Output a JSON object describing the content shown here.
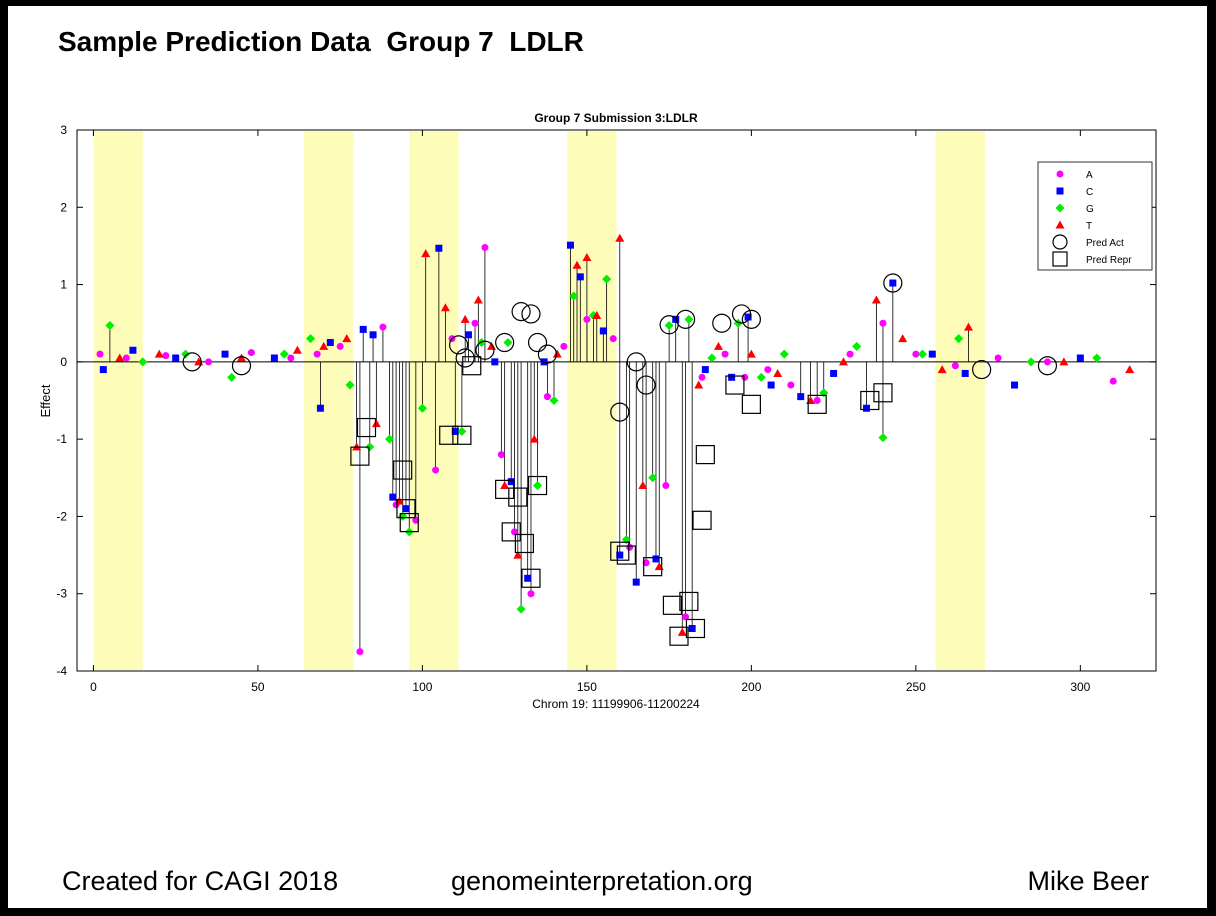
{
  "slide": {
    "title": "Sample Prediction Data  Group 7  LDLR",
    "footer_left": "Created for CAGI 2018",
    "footer_center": "genomeinterpretation.org",
    "footer_right": "Mike Beer"
  },
  "chart_data": {
    "type": "scatter",
    "title": "Group 7 Submission 3:LDLR",
    "xlabel": "Chrom 19: 11199906-11200224",
    "ylabel": "Effect",
    "xlim": [
      -5,
      323
    ],
    "ylim": [
      -4,
      3
    ],
    "xticks": [
      0,
      50,
      100,
      150,
      200,
      250,
      300
    ],
    "yticks": [
      -4,
      -3,
      -2,
      -1,
      0,
      1,
      2,
      3
    ],
    "grid": false,
    "legend_position": "top-right",
    "highlight_regions": [
      [
        0,
        15
      ],
      [
        64,
        79
      ],
      [
        96,
        111
      ],
      [
        144,
        159
      ],
      [
        256,
        271
      ]
    ],
    "highlight_color": "#fdfcb8",
    "legend": [
      {
        "label": "A",
        "marker": "circle",
        "color": "#ff00ff"
      },
      {
        "label": "C",
        "marker": "square",
        "color": "#0000ff"
      },
      {
        "label": "G",
        "marker": "diamond",
        "color": "#00ee00"
      },
      {
        "label": "T",
        "marker": "triangle",
        "color": "#ff0000"
      },
      {
        "label": "Pred Act",
        "marker": "open-circle",
        "color": "#000000"
      },
      {
        "label": "Pred Repr",
        "marker": "open-square",
        "color": "#000000"
      }
    ],
    "series": [
      {
        "name": "A",
        "color": "#ff00ff",
        "marker": "circle",
        "x": [
          2,
          10,
          22,
          35,
          48,
          60,
          68,
          75,
          81,
          88,
          92,
          98,
          104,
          109,
          116,
          119,
          124,
          128,
          133,
          138,
          143,
          150,
          158,
          163,
          168,
          174,
          180,
          185,
          192,
          198,
          205,
          212,
          220,
          230,
          240,
          250,
          262,
          275,
          290,
          310
        ],
        "y": [
          0.1,
          0.05,
          0.08,
          0.0,
          0.12,
          0.05,
          0.1,
          0.2,
          -3.75,
          0.45,
          -1.85,
          -2.05,
          -1.4,
          0.3,
          0.5,
          1.48,
          -1.2,
          -2.2,
          -3.0,
          -0.45,
          0.2,
          0.55,
          0.3,
          -2.4,
          -2.6,
          -1.6,
          -3.3,
          -0.2,
          0.1,
          -0.2,
          -0.1,
          -0.3,
          -0.5,
          0.1,
          0.5,
          0.1,
          -0.05,
          0.05,
          0.0,
          -0.25
        ]
      },
      {
        "name": "C",
        "color": "#0000ff",
        "marker": "square",
        "x": [
          3,
          12,
          25,
          40,
          55,
          69,
          72,
          82,
          85,
          91,
          95,
          105,
          110,
          114,
          122,
          127,
          132,
          137,
          145,
          148,
          155,
          160,
          165,
          171,
          177,
          182,
          186,
          194,
          199,
          206,
          215,
          225,
          235,
          243,
          255,
          265,
          280,
          300
        ],
        "y": [
          -0.1,
          0.15,
          0.05,
          0.1,
          0.05,
          -0.6,
          0.25,
          0.42,
          0.35,
          -1.75,
          -1.9,
          1.47,
          -0.9,
          0.35,
          0.0,
          -1.55,
          -2.8,
          0.0,
          1.51,
          1.1,
          0.4,
          -2.5,
          -2.85,
          -2.55,
          0.55,
          -3.45,
          -0.1,
          -0.2,
          0.58,
          -0.3,
          -0.45,
          -0.15,
          -0.6,
          1.02,
          0.1,
          -0.15,
          -0.3,
          0.05
        ]
      },
      {
        "name": "G",
        "color": "#00ee00",
        "marker": "diamond",
        "x": [
          5,
          15,
          28,
          42,
          58,
          66,
          78,
          84,
          90,
          94,
          96,
          100,
          112,
          118,
          126,
          130,
          135,
          140,
          146,
          152,
          156,
          162,
          170,
          175,
          181,
          188,
          196,
          203,
          210,
          222,
          232,
          240,
          252,
          263,
          285,
          305
        ],
        "y": [
          0.47,
          0.0,
          0.1,
          -0.2,
          0.1,
          0.3,
          -0.3,
          -1.1,
          -1.0,
          -2.0,
          -2.2,
          -0.6,
          -0.9,
          0.25,
          0.25,
          -3.2,
          -1.6,
          -0.5,
          0.85,
          0.6,
          1.07,
          -2.3,
          -1.5,
          0.47,
          0.55,
          0.05,
          0.5,
          -0.2,
          0.1,
          -0.4,
          0.2,
          -0.98,
          0.1,
          0.3,
          0.0,
          0.05
        ]
      },
      {
        "name": "T",
        "color": "#ff0000",
        "marker": "triangle",
        "x": [
          8,
          20,
          32,
          45,
          62,
          70,
          77,
          80,
          86,
          93,
          101,
          107,
          113,
          117,
          121,
          125,
          129,
          134,
          141,
          147,
          150,
          153,
          160,
          167,
          172,
          179,
          184,
          190,
          200,
          208,
          218,
          228,
          238,
          246,
          258,
          266,
          295,
          315
        ],
        "y": [
          0.05,
          0.1,
          0.0,
          0.05,
          0.15,
          0.2,
          0.3,
          -1.1,
          -0.8,
          -1.8,
          1.4,
          0.7,
          0.55,
          0.8,
          0.2,
          -1.6,
          -2.5,
          -1.0,
          0.1,
          1.25,
          1.35,
          0.6,
          1.6,
          -1.6,
          -2.65,
          -3.5,
          -0.3,
          0.2,
          0.1,
          -0.15,
          -0.5,
          0.0,
          0.8,
          0.3,
          -0.1,
          0.45,
          0.0,
          -0.1
        ]
      },
      {
        "name": "Pred Act",
        "color": "#000000",
        "marker": "open-circle",
        "x": [
          30,
          45,
          111,
          113,
          119,
          125,
          130,
          133,
          135,
          138,
          160,
          165,
          168,
          175,
          180,
          191,
          197,
          200,
          243,
          270,
          290
        ],
        "y": [
          0.0,
          -0.05,
          0.22,
          0.05,
          0.15,
          0.25,
          0.65,
          0.62,
          0.25,
          0.1,
          -0.65,
          0.0,
          -0.3,
          0.48,
          0.55,
          0.5,
          0.62,
          0.55,
          1.02,
          -0.1,
          -0.05
        ]
      },
      {
        "name": "Pred Repr",
        "color": "#000000",
        "marker": "open-square",
        "x": [
          81,
          83,
          94,
          95,
          96,
          108,
          112,
          115,
          125,
          127,
          129,
          131,
          133,
          135,
          160,
          162,
          170,
          176,
          178,
          181,
          183,
          185,
          186,
          195,
          200,
          220,
          236,
          240
        ],
        "y": [
          -1.22,
          -0.85,
          -1.4,
          -1.9,
          -2.08,
          -0.95,
          -0.95,
          -0.05,
          -1.65,
          -2.2,
          -1.75,
          -2.35,
          -2.8,
          -1.6,
          -2.45,
          -2.5,
          -2.65,
          -3.15,
          -3.55,
          -3.1,
          -3.45,
          -2.05,
          -1.2,
          -0.3,
          -0.55,
          -0.55,
          -0.5,
          -0.4
        ]
      }
    ]
  }
}
